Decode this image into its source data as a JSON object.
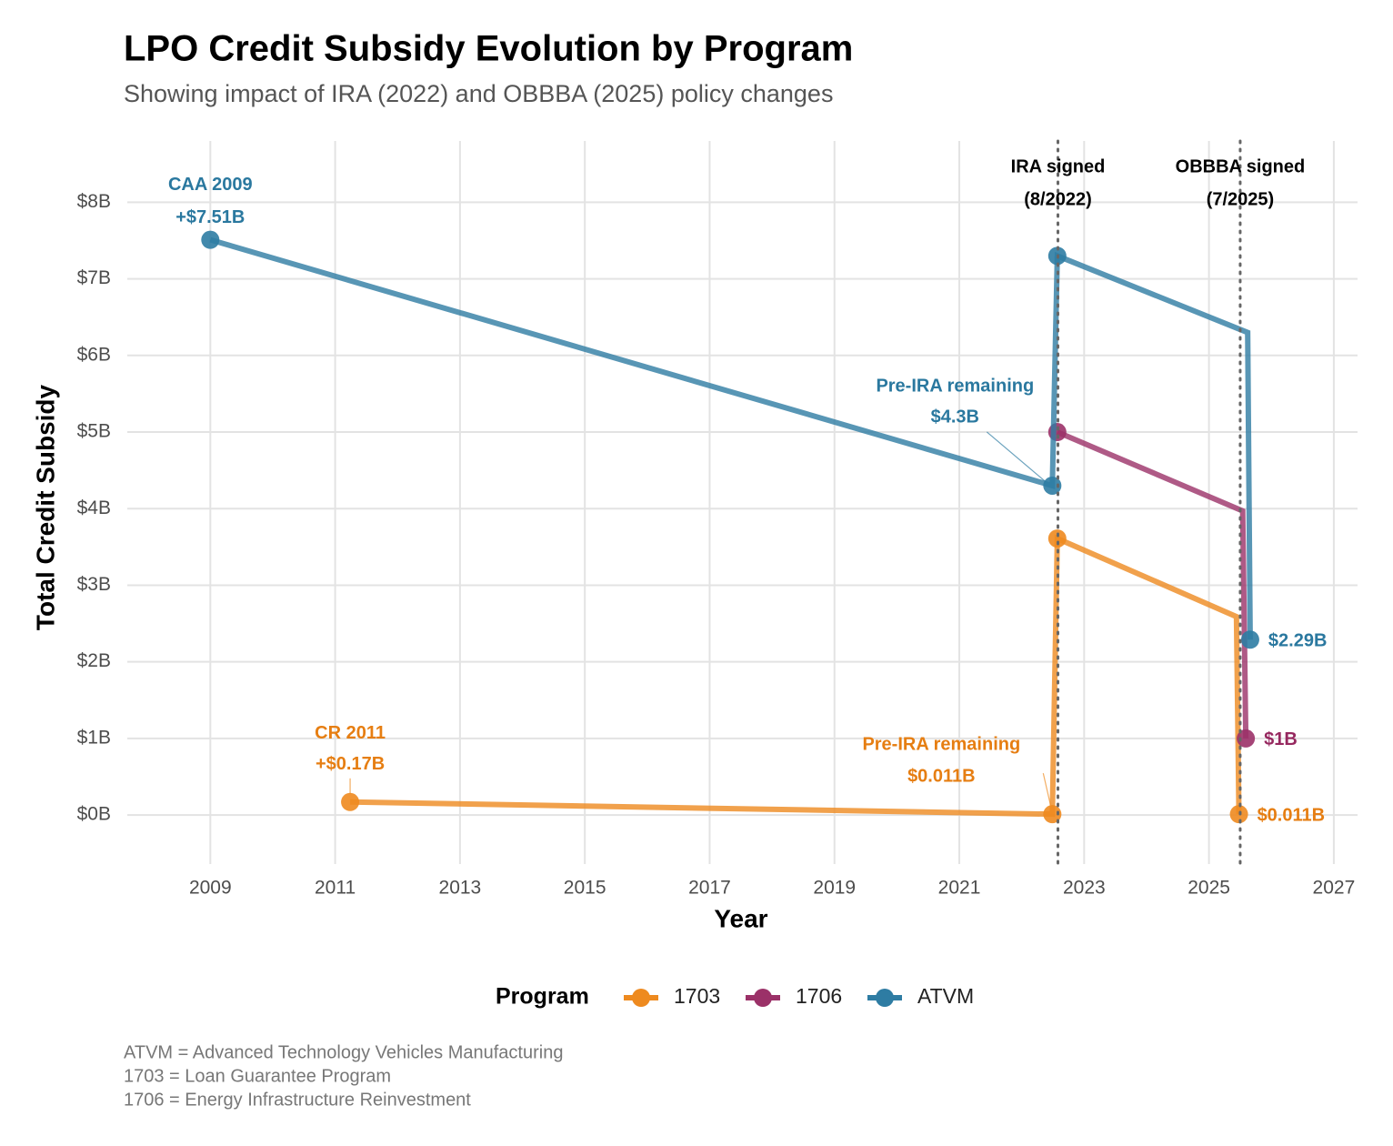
{
  "chart_data": {
    "type": "line",
    "title": "LPO Credit Subsidy Evolution by Program",
    "subtitle": "Showing impact of IRA (2022) and OBBBA (2025) policy changes",
    "x_label": "Year",
    "y_label": "Total Credit Subsidy",
    "xlim": [
      2007.67,
      2027.38
    ],
    "ylim": [
      -0.64,
      8.8
    ],
    "xticks": [
      2009,
      2011,
      2013,
      2015,
      2017,
      2019,
      2021,
      2023,
      2025,
      2027
    ],
    "yticks": [
      {
        "value": 0,
        "label": "$0B"
      },
      {
        "value": 1,
        "label": "$1B"
      },
      {
        "value": 2,
        "label": "$2B"
      },
      {
        "value": 3,
        "label": "$3B"
      },
      {
        "value": 4,
        "label": "$4B"
      },
      {
        "value": 5,
        "label": "$5B"
      },
      {
        "value": 6,
        "label": "$6B"
      },
      {
        "value": 7,
        "label": "$7B"
      },
      {
        "value": 8,
        "label": "$8B"
      }
    ],
    "grid": true,
    "legend_title": "Program",
    "legend_position": "bottom",
    "series": [
      {
        "name": "1703",
        "color": "#ee8a1f",
        "label_color": "#e67e12",
        "x": [
          2011.24,
          2022.49,
          2022.57,
          2025.44,
          2025.48
        ],
        "values": [
          0.17,
          0.011,
          3.61,
          2.59,
          0.011
        ],
        "markers": [
          true,
          true,
          true,
          false,
          true
        ],
        "notes": [
          "CR 2011",
          "Pre-IRA remaining",
          null,
          null,
          null
        ],
        "value_labels": [
          "+$0.17B",
          "$0.011B",
          null,
          null,
          "$0.011B"
        ]
      },
      {
        "name": "1706",
        "color": "#9b3168",
        "label_color": "#96285f",
        "x": [
          2022.57,
          2025.54,
          2025.59
        ],
        "values": [
          5.0,
          3.97,
          1.0
        ],
        "markers": [
          true,
          false,
          true
        ],
        "notes": [
          null,
          null,
          null
        ],
        "value_labels": [
          null,
          null,
          "$1B"
        ]
      },
      {
        "name": "ATVM",
        "color": "#2e7ca3",
        "label_color": "#2a789f",
        "x": [
          2009,
          2022.49,
          2022.57,
          2025.62,
          2025.66
        ],
        "values": [
          7.51,
          4.3,
          7.3,
          6.3,
          2.29
        ],
        "markers": [
          true,
          true,
          true,
          false,
          true
        ],
        "notes": [
          "CAA 2009",
          "Pre-IRA remaining",
          null,
          null,
          null
        ],
        "value_labels": [
          "+$7.51B",
          "$4.3B",
          null,
          null,
          "$2.29B"
        ]
      }
    ],
    "vlines": [
      {
        "x": 2022.58,
        "label": [
          "IRA signed",
          "(8/2022)"
        ]
      },
      {
        "x": 2025.5,
        "label": [
          "OBBBA signed",
          "(7/2025)"
        ]
      }
    ],
    "caption": [
      "ATVM = Advanced Technology Vehicles Manufacturing",
      "1703 = Loan Guarantee Program",
      "1706 = Energy Infrastructure Reinvestment"
    ]
  }
}
